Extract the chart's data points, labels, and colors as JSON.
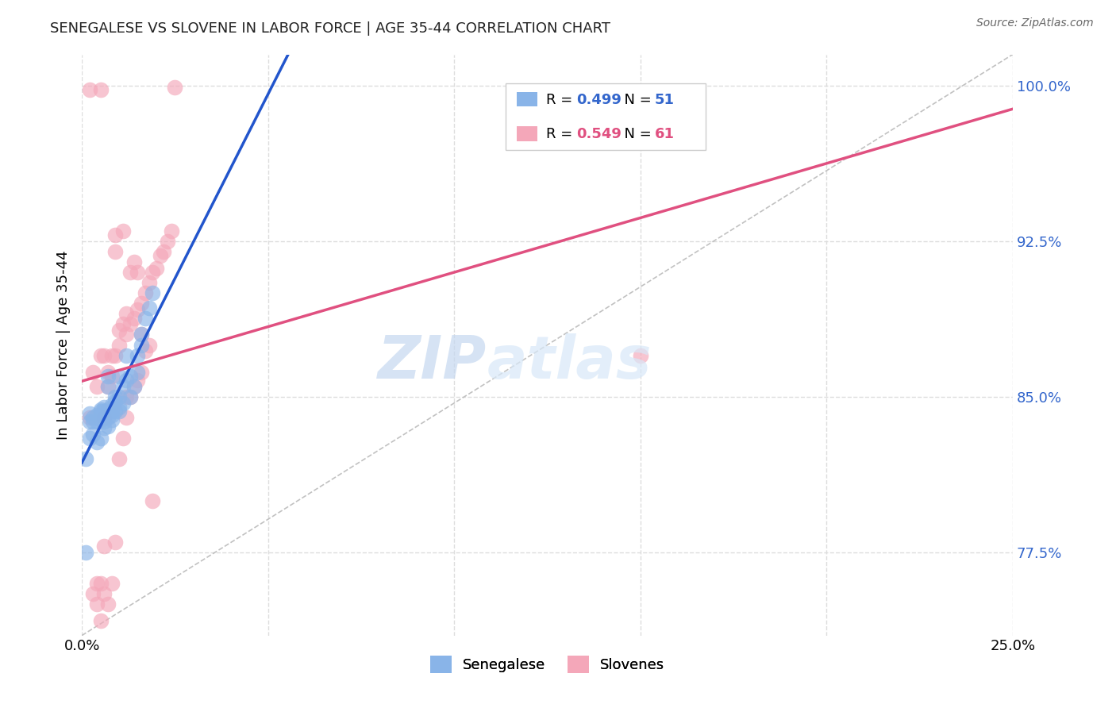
{
  "title": "SENEGALESE VS SLOVENE IN LABOR FORCE | AGE 35-44 CORRELATION CHART",
  "source": "Source: ZipAtlas.com",
  "ylabel": "In Labor Force | Age 35-44",
  "xlim": [
    0.0,
    0.25
  ],
  "ylim": [
    0.735,
    1.015
  ],
  "x_ticks": [
    0.0,
    0.05,
    0.1,
    0.15,
    0.2,
    0.25
  ],
  "y_ticks_right": [
    0.775,
    0.85,
    0.925,
    1.0
  ],
  "legend_r_blue": "0.499",
  "legend_n_blue": "51",
  "legend_r_pink": "0.549",
  "legend_n_pink": "61",
  "legend_label_blue": "Senegalese",
  "legend_label_pink": "Slovenes",
  "blue_color": "#89b4e8",
  "pink_color": "#f4a7b9",
  "blue_line_color": "#2255cc",
  "pink_line_color": "#e05080",
  "blue_scatter_x": [
    0.001,
    0.002,
    0.002,
    0.002,
    0.003,
    0.003,
    0.003,
    0.004,
    0.004,
    0.004,
    0.005,
    0.005,
    0.005,
    0.005,
    0.006,
    0.006,
    0.006,
    0.006,
    0.006,
    0.007,
    0.007,
    0.007,
    0.007,
    0.007,
    0.007,
    0.008,
    0.008,
    0.008,
    0.008,
    0.009,
    0.009,
    0.009,
    0.01,
    0.01,
    0.01,
    0.01,
    0.011,
    0.011,
    0.012,
    0.012,
    0.013,
    0.013,
    0.014,
    0.015,
    0.015,
    0.016,
    0.016,
    0.017,
    0.018,
    0.019,
    0.001
  ],
  "blue_scatter_y": [
    0.775,
    0.838,
    0.842,
    0.83,
    0.84,
    0.838,
    0.832,
    0.841,
    0.838,
    0.828,
    0.844,
    0.839,
    0.843,
    0.83,
    0.841,
    0.845,
    0.838,
    0.835,
    0.843,
    0.844,
    0.84,
    0.843,
    0.836,
    0.855,
    0.86,
    0.846,
    0.841,
    0.839,
    0.843,
    0.843,
    0.848,
    0.85,
    0.843,
    0.845,
    0.85,
    0.86,
    0.855,
    0.847,
    0.858,
    0.87,
    0.85,
    0.86,
    0.855,
    0.862,
    0.87,
    0.88,
    0.875,
    0.888,
    0.893,
    0.9,
    0.82
  ],
  "pink_scatter_x": [
    0.002,
    0.002,
    0.003,
    0.003,
    0.004,
    0.004,
    0.004,
    0.005,
    0.005,
    0.005,
    0.006,
    0.006,
    0.006,
    0.006,
    0.007,
    0.007,
    0.007,
    0.008,
    0.008,
    0.008,
    0.009,
    0.009,
    0.009,
    0.01,
    0.01,
    0.01,
    0.011,
    0.011,
    0.011,
    0.012,
    0.012,
    0.012,
    0.013,
    0.013,
    0.013,
    0.014,
    0.014,
    0.014,
    0.015,
    0.015,
    0.015,
    0.016,
    0.016,
    0.016,
    0.017,
    0.017,
    0.018,
    0.018,
    0.019,
    0.019,
    0.02,
    0.021,
    0.022,
    0.023,
    0.024,
    0.025,
    0.15,
    0.005,
    0.006,
    0.009,
    0.012
  ],
  "pink_scatter_y": [
    0.998,
    0.84,
    0.755,
    0.862,
    0.76,
    0.75,
    0.855,
    0.742,
    0.87,
    0.998,
    0.84,
    0.778,
    0.755,
    0.87,
    0.855,
    0.75,
    0.862,
    0.86,
    0.76,
    0.87,
    0.87,
    0.78,
    0.92,
    0.875,
    0.82,
    0.882,
    0.885,
    0.83,
    0.93,
    0.88,
    0.84,
    0.89,
    0.885,
    0.85,
    0.91,
    0.888,
    0.855,
    0.915,
    0.892,
    0.858,
    0.91,
    0.895,
    0.862,
    0.88,
    0.9,
    0.872,
    0.905,
    0.875,
    0.91,
    0.8,
    0.912,
    0.918,
    0.92,
    0.925,
    0.93,
    0.999,
    0.87,
    0.76,
    0.84,
    0.928,
    0.85
  ],
  "watermark_zip": "ZIP",
  "watermark_atlas": "atlas",
  "background_color": "#ffffff",
  "grid_color": "#dddddd"
}
